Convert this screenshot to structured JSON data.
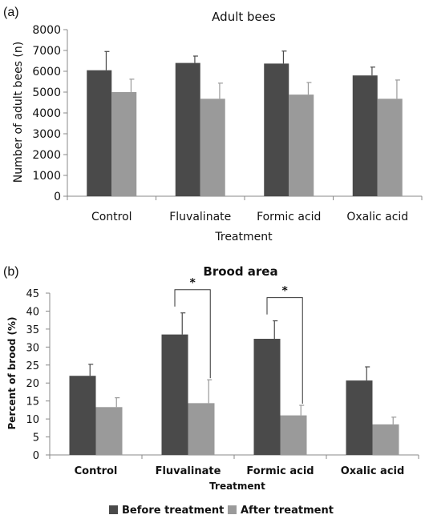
{
  "colors": {
    "before": "#4a4a4a",
    "after": "#9a9a9a",
    "axis": "#888888"
  },
  "legend": {
    "position": "bottom-center",
    "items": [
      "Before treatment",
      "After treatment"
    ]
  },
  "chart_data": [
    {
      "panel": "(a)",
      "type": "bar",
      "title": "Adult bees",
      "xlabel": "Treatment",
      "ylabel": "Number of adult bees (n)",
      "ylim": [
        0,
        8000
      ],
      "yticks": [
        "0",
        "1000",
        "2000",
        "3000",
        "4000",
        "5000",
        "6000",
        "7000",
        "8000"
      ],
      "categories": [
        "Control",
        "Fluvalinate",
        "Formic acid",
        "Oxalic acid"
      ],
      "series": [
        {
          "name": "Before treatment",
          "values": [
            6050,
            6400,
            6370,
            5800
          ],
          "errors": [
            900,
            330,
            600,
            400
          ]
        },
        {
          "name": "After treatment",
          "values": [
            5000,
            4680,
            4880,
            4680
          ],
          "errors": [
            620,
            750,
            580,
            900
          ]
        }
      ],
      "annotations": []
    },
    {
      "panel": "(b)",
      "type": "bar",
      "title": "Brood area",
      "xlabel": "Treatment",
      "ylabel": "Percent of brood (%)",
      "ylim": [
        0,
        45
      ],
      "yticks": [
        "0",
        "5",
        "10",
        "15",
        "20",
        "25",
        "30",
        "35",
        "40",
        "45"
      ],
      "categories": [
        "Control",
        "Fluvalinate",
        "Formic acid",
        "Oxalic acid"
      ],
      "series": [
        {
          "name": "Before treatment",
          "values": [
            22,
            33.5,
            32.3,
            20.7
          ],
          "errors": [
            3.2,
            6,
            5,
            3.8
          ]
        },
        {
          "name": "After treatment",
          "values": [
            13.3,
            14.4,
            11,
            8.5
          ],
          "errors": [
            2.6,
            6.5,
            2.8,
            2
          ]
        }
      ],
      "annotations": [
        {
          "label": "*",
          "category_index": 1
        },
        {
          "label": "*",
          "category_index": 2
        }
      ]
    }
  ]
}
